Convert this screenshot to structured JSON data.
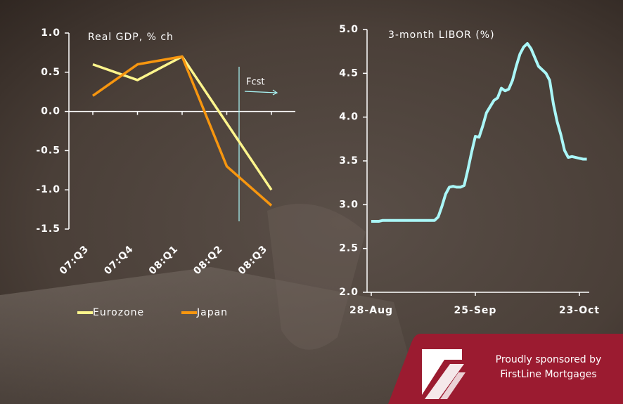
{
  "chart_data": [
    {
      "type": "line",
      "title": "Real GDP, % ch",
      "categories": [
        "07:Q3",
        "07:Q4",
        "08:Q1",
        "08:Q2",
        "08:Q3"
      ],
      "series": [
        {
          "name": "Eurozone",
          "color": "#fdf58c",
          "values": [
            0.6,
            0.4,
            0.7,
            -0.15,
            -1.0
          ]
        },
        {
          "name": "Japan",
          "color": "#f7960f",
          "values": [
            0.2,
            0.6,
            0.7,
            -0.7,
            -1.2
          ]
        }
      ],
      "ylim": [
        -1.5,
        1.0
      ],
      "yticks": [
        {
          "value": 1.0,
          "label": "1.0"
        },
        0.5,
        {
          "value": 0.0,
          "label": "0.0"
        },
        -0.5,
        {
          "value": -1.0,
          "label": "-1.0"
        },
        -1.5
      ],
      "annotation": "Fcst",
      "legend": "bottom"
    },
    {
      "type": "line",
      "title": "3-month LIBOR (%)",
      "x": [
        "28-Aug",
        "29-Aug",
        "30-Aug",
        "31-Aug",
        "1-Sep",
        "2-Sep",
        "3-Sep",
        "4-Sep",
        "5-Sep",
        "6-Sep",
        "7-Sep",
        "8-Sep",
        "9-Sep",
        "10-Sep",
        "11-Sep",
        "12-Sep",
        "13-Sep",
        "14-Sep",
        "15-Sep",
        "16-Sep",
        "17-Sep",
        "18-Sep",
        "19-Sep",
        "20-Sep",
        "21-Sep",
        "22-Sep",
        "23-Sep",
        "24-Sep",
        "25-Sep",
        "26-Sep",
        "27-Sep",
        "28-Sep",
        "29-Sep",
        "30-Sep",
        "1-Oct",
        "2-Oct",
        "3-Oct",
        "4-Oct",
        "5-Oct",
        "6-Oct",
        "7-Oct",
        "8-Oct",
        "9-Oct",
        "10-Oct",
        "11-Oct",
        "12-Oct",
        "13-Oct",
        "14-Oct",
        "15-Oct",
        "16-Oct",
        "17-Oct",
        "18-Oct",
        "19-Oct",
        "20-Oct",
        "21-Oct",
        "22-Oct",
        "23-Oct",
        "24-Oct",
        "25-Oct"
      ],
      "series": [
        {
          "color": "#aaf7f8",
          "values": [
            2.81,
            2.81,
            2.81,
            2.82,
            2.82,
            2.82,
            2.82,
            2.82,
            2.82,
            2.82,
            2.82,
            2.82,
            2.82,
            2.82,
            2.82,
            2.82,
            2.82,
            2.82,
            2.86,
            2.98,
            3.12,
            3.2,
            3.21,
            3.2,
            3.2,
            3.22,
            3.4,
            3.6,
            3.78,
            3.77,
            3.9,
            4.05,
            4.12,
            4.19,
            4.22,
            4.33,
            4.3,
            4.32,
            4.42,
            4.58,
            4.72,
            4.8,
            4.84,
            4.78,
            4.68,
            4.58,
            4.54,
            4.5,
            4.42,
            4.15,
            3.95,
            3.8,
            3.62,
            3.54,
            3.55,
            3.54,
            3.53,
            3.52,
            3.52
          ]
        }
      ],
      "xticks": [
        "28-Aug",
        "25-Sep",
        "23-Oct"
      ],
      "ylim": [
        2.0,
        5.0
      ],
      "yticks": [
        {
          "value": 2.0,
          "label": "2.0"
        },
        2.5,
        {
          "value": 3.0,
          "label": "3.0"
        },
        3.5,
        {
          "value": 4.0,
          "label": "4.0"
        },
        4.5,
        {
          "value": 5.0,
          "label": "5.0"
        }
      ]
    }
  ],
  "sponsor": {
    "line1": "Proudly sponsored by",
    "line2": "FirstLine Mortgages"
  }
}
